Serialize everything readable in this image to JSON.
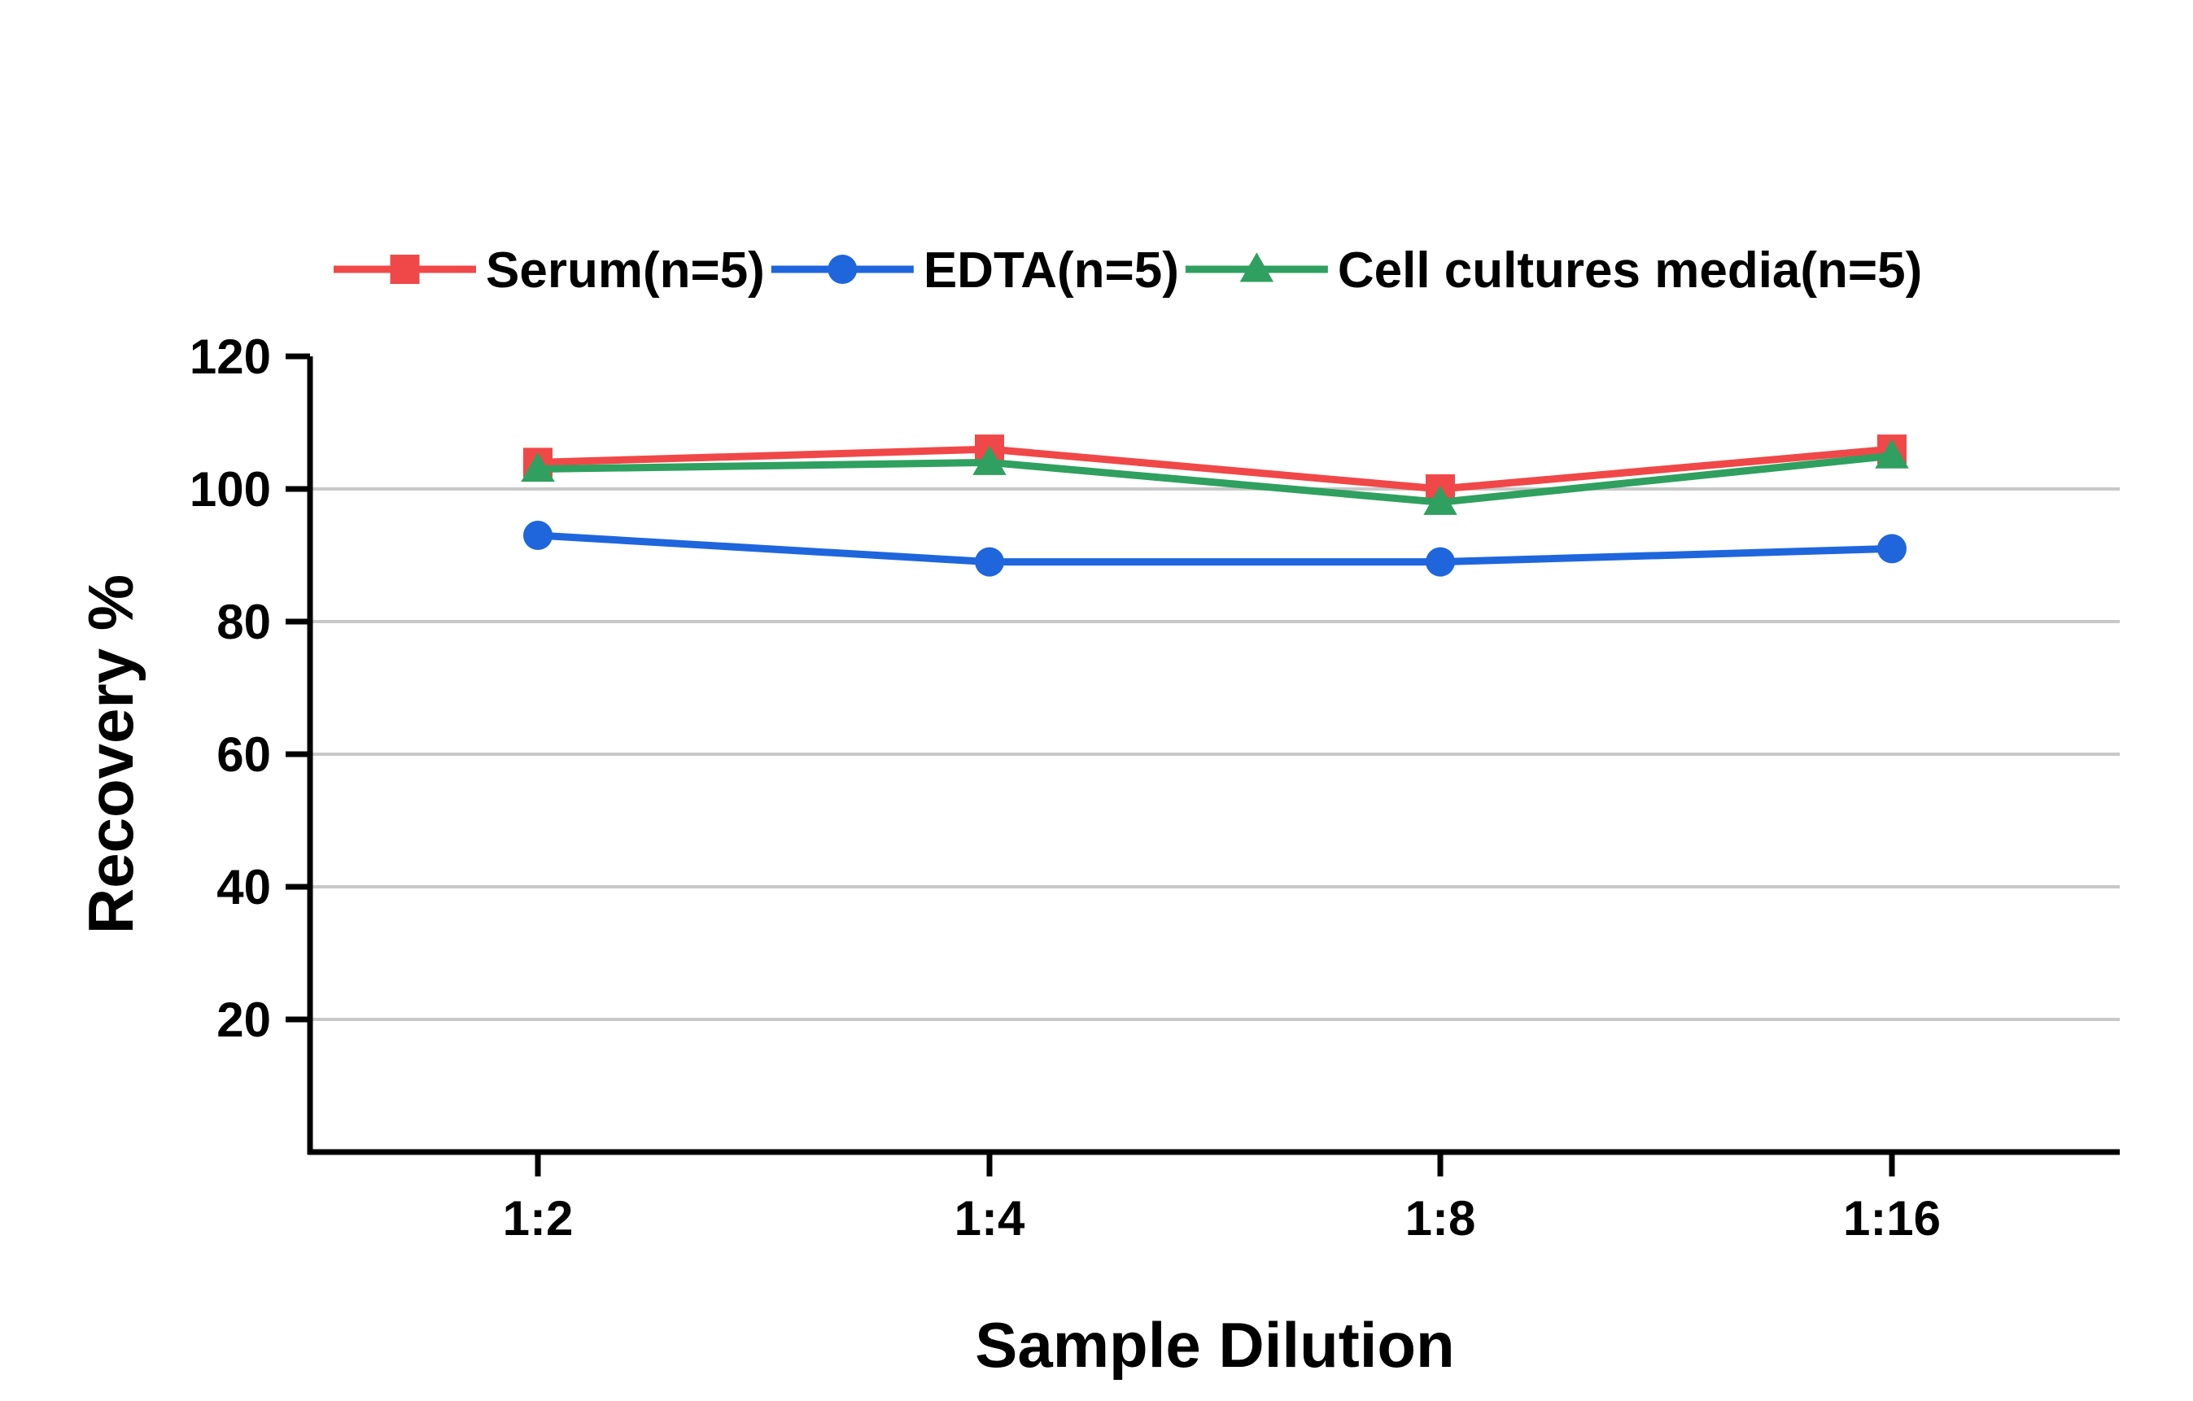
{
  "chart_data": {
    "type": "line",
    "xlabel": "Sample Dilution",
    "ylabel": "Recovery %",
    "categories": [
      "1:2",
      "1:4",
      "1:8",
      "1:16"
    ],
    "ylim": [
      0,
      120
    ],
    "yticks": [
      20,
      40,
      60,
      80,
      100,
      120
    ],
    "grid": true,
    "legend_position": "top",
    "series": [
      {
        "name": "Serum(n=5)",
        "values": [
          104,
          106,
          100,
          106
        ],
        "color": "#f04848",
        "marker": "square"
      },
      {
        "name": "EDTA(n=5)",
        "values": [
          93,
          89,
          89,
          91
        ],
        "color": "#1f66dc",
        "marker": "circle"
      },
      {
        "name": "Cell cultures media(n=5)",
        "values": [
          103,
          104,
          98,
          105
        ],
        "color": "#2fa05f",
        "marker": "triangle"
      }
    ]
  }
}
